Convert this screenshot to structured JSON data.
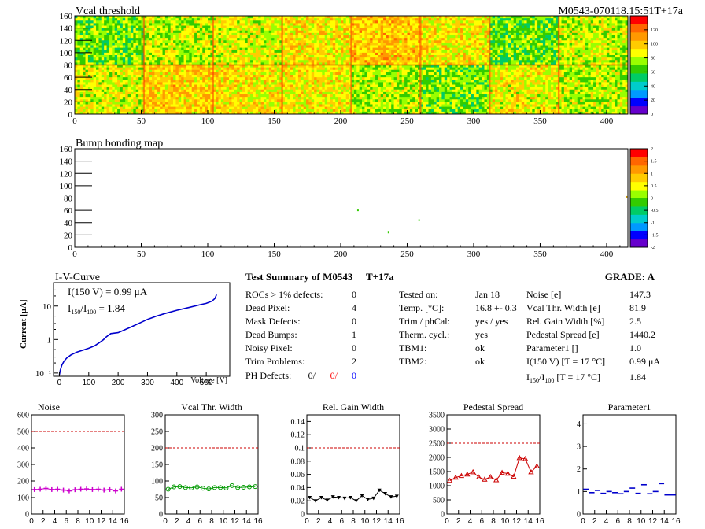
{
  "header": {
    "title": "Vcal threshold",
    "module_tag": "M0543-070118.15:51T+17a"
  },
  "bump": {
    "title": "Bump bonding map"
  },
  "iv": {
    "title": "I-V-Curve",
    "ylabel": "Current [μA]",
    "xlabel": "Voltage [V]"
  },
  "summary": {
    "title": "Test Summary of M0543",
    "temp_tag": "T+17a",
    "grade": "GRADE:  A",
    "rows": [
      {
        "label": "ROCs > 1% defects:",
        "value": "0"
      },
      {
        "label": "Dead Pixel:",
        "value": "4"
      },
      {
        "label": "Mask Defects:",
        "value": "0"
      },
      {
        "label": "Dead Bumps:",
        "value": "1"
      },
      {
        "label": "Noisy Pixel:",
        "value": "0"
      },
      {
        "label": "Trim Problems:",
        "value": "2"
      }
    ],
    "ph_label": "PH Defects:",
    "ph_values": [
      "0/",
      "0/",
      "0"
    ],
    "ph_colors": [
      "#000000",
      "#ff0000",
      "#0000ff"
    ],
    "tests": [
      {
        "label": "Tested on:",
        "value": "Jan 18"
      },
      {
        "label": "Temp. [°C]:",
        "value": "16.8 +- 0.3"
      },
      {
        "label": "Trim / phCal:",
        "value": "yes / yes"
      },
      {
        "label": "Therm. cycl.:",
        "value": "yes"
      },
      {
        "label": "TBM1:",
        "value": "ok"
      },
      {
        "label": "TBM2:",
        "value": "ok"
      }
    ],
    "params": [
      {
        "label": "Noise [e]",
        "value": "147.3"
      },
      {
        "label": "Vcal Thr. Width [e]",
        "value": "81.9"
      },
      {
        "label": "Rel. Gain Width [%]",
        "value": "2.5"
      },
      {
        "label": "Pedestal Spread [e]",
        "value": "1440.2"
      },
      {
        "label": "Parameter1 []",
        "value": "1.0"
      },
      {
        "label": "I(150 V) [T = 17 °C]",
        "value": "0.99 μA"
      },
      {
        "label": "I150/I100  [T = 17 °C]",
        "value": "1.84"
      }
    ]
  },
  "chart_data": [
    {
      "type": "heatmap",
      "title": "Vcal threshold",
      "xlim": [
        0,
        416
      ],
      "ylim": [
        0,
        160
      ],
      "x_ticks": [
        0,
        50,
        100,
        150,
        200,
        250,
        300,
        350,
        400
      ],
      "y_ticks": [
        0,
        20,
        40,
        60,
        80,
        100,
        120,
        140,
        160
      ],
      "z_range": [
        0,
        140
      ],
      "z_ticks": [
        0,
        20,
        40,
        60,
        80,
        100,
        120
      ],
      "roc_means_top": [
        70,
        80,
        85,
        92,
        100,
        92,
        68,
        82
      ],
      "roc_means_bottom": [
        85,
        98,
        92,
        90,
        78,
        72,
        88,
        80
      ],
      "palette": [
        "#6600cc",
        "#0000ff",
        "#0099ff",
        "#00cccc",
        "#00cc66",
        "#33cc00",
        "#99ff00",
        "#ffff00",
        "#ffcc00",
        "#ff9900",
        "#ff6600",
        "#ff0000"
      ]
    },
    {
      "type": "heatmap",
      "title": "Bump bonding map",
      "xlim": [
        0,
        416
      ],
      "ylim": [
        0,
        160
      ],
      "x_ticks": [
        0,
        50,
        100,
        150,
        200,
        250,
        300,
        350,
        400
      ],
      "y_ticks": [
        0,
        20,
        40,
        60,
        80,
        100,
        120,
        140,
        160
      ],
      "z_range": [
        -2,
        2
      ],
      "z_ticks": [
        "-2",
        "-1.5",
        "-1",
        "-0.5",
        "0",
        "0.5",
        "1",
        "1.5",
        "2"
      ],
      "points": [
        {
          "x": 213,
          "y": 60,
          "c": "#33cc00"
        },
        {
          "x": 236,
          "y": 24,
          "c": "#33cc00"
        },
        {
          "x": 259,
          "y": 44,
          "c": "#33cc00"
        },
        {
          "x": 415,
          "y": 82,
          "c": "#cc9900"
        }
      ]
    },
    {
      "type": "line",
      "title": "I-V-Curve",
      "xlabel": "Voltage [V]",
      "ylabel": "Current [μA]",
      "xlim": [
        -20,
        580
      ],
      "y_log": true,
      "ylim": [
        0.08,
        50
      ],
      "x_ticks": [
        0,
        100,
        200,
        300,
        400,
        500
      ],
      "y_ticks": [
        {
          "v": 0.1,
          "l": "10⁻¹"
        },
        {
          "v": 1,
          "l": "1"
        },
        {
          "v": 10,
          "l": "10"
        }
      ],
      "annotation1": "I(150 V) = 0.99 μA",
      "annotation2": "I150/I100 =  1.84",
      "x": [
        0,
        3,
        8,
        15,
        25,
        40,
        60,
        80,
        100,
        120,
        140,
        150,
        160,
        175,
        200,
        220,
        250,
        280,
        300,
        330,
        360,
        400,
        440,
        480,
        500,
        520,
        530,
        535
      ],
      "y": [
        0.09,
        0.12,
        0.17,
        0.22,
        0.28,
        0.35,
        0.42,
        0.48,
        0.55,
        0.65,
        0.85,
        0.99,
        1.2,
        1.5,
        1.6,
        1.9,
        2.5,
        3.3,
        4,
        5,
        6,
        7.5,
        9,
        11,
        12,
        14,
        17,
        22
      ],
      "color": "#0000cc"
    },
    {
      "type": "line",
      "title": "Noise",
      "xlim": [
        0,
        16
      ],
      "ylim": [
        0,
        600
      ],
      "y_ticks": [
        0,
        100,
        200,
        300,
        400,
        500,
        600
      ],
      "limit": 500,
      "x": [
        0,
        1,
        2,
        3,
        4,
        5,
        6,
        7,
        8,
        9,
        10,
        11,
        12,
        13,
        14,
        15
      ],
      "values": [
        148,
        150,
        155,
        148,
        150,
        145,
        140,
        147,
        150,
        152,
        148,
        150,
        145,
        148,
        140,
        150
      ],
      "color": "#cc00cc",
      "marker": "cross"
    },
    {
      "type": "line",
      "title": "Vcal Thr. Width",
      "xlim": [
        0,
        16
      ],
      "ylim": [
        0,
        300
      ],
      "y_ticks": [
        0,
        50,
        100,
        150,
        200,
        250,
        300
      ],
      "limit": 200,
      "x": [
        0,
        1,
        2,
        3,
        4,
        5,
        6,
        7,
        8,
        9,
        10,
        11,
        12,
        13,
        14,
        15
      ],
      "values": [
        75,
        82,
        83,
        80,
        79,
        82,
        78,
        76,
        80,
        80,
        79,
        86,
        80,
        81,
        82,
        83
      ],
      "color": "#009900",
      "marker": "circle"
    },
    {
      "type": "line",
      "title": "Rel. Gain Width",
      "xlim": [
        0,
        16
      ],
      "ylim": [
        0,
        0.15
      ],
      "y_ticks": [
        0,
        0.02,
        0.04,
        0.06,
        0.08,
        0.1,
        0.12,
        0.14
      ],
      "limit": 0.1,
      "x": [
        0,
        1,
        2,
        3,
        4,
        5,
        6,
        7,
        8,
        9,
        10,
        11,
        12,
        13,
        14,
        15
      ],
      "values": [
        0.025,
        0.02,
        0.025,
        0.021,
        0.026,
        0.025,
        0.024,
        0.025,
        0.02,
        0.028,
        0.022,
        0.024,
        0.036,
        0.031,
        0.026,
        0.027
      ],
      "color": "#000000",
      "marker": "triangle-down"
    },
    {
      "type": "line",
      "title": "Pedestal Spread",
      "xlim": [
        0,
        16
      ],
      "ylim": [
        0,
        3500
      ],
      "y_ticks": [
        0,
        500,
        1000,
        1500,
        2000,
        2500,
        3000,
        3500
      ],
      "limit": 2500,
      "x": [
        0,
        1,
        2,
        3,
        4,
        5,
        6,
        7,
        8,
        9,
        10,
        11,
        12,
        13,
        14,
        15
      ],
      "values": [
        1180,
        1290,
        1350,
        1400,
        1480,
        1300,
        1220,
        1310,
        1200,
        1460,
        1430,
        1320,
        1980,
        1950,
        1480,
        1690
      ],
      "color": "#cc0000",
      "marker": "triangle-up"
    },
    {
      "type": "scatter",
      "title": "Parameter1",
      "xlim": [
        0,
        16
      ],
      "ylim": [
        0,
        4.4
      ],
      "y_ticks": [
        0,
        1,
        2,
        3,
        4
      ],
      "x": [
        0,
        1,
        2,
        3,
        4,
        5,
        6,
        7,
        8,
        9,
        10,
        11,
        12,
        13,
        14,
        15
      ],
      "values": [
        1.1,
        0.95,
        1.05,
        0.92,
        1.0,
        0.95,
        0.9,
        1.0,
        1.15,
        0.92,
        1.3,
        0.9,
        1.0,
        1.35,
        0.85,
        0.85
      ],
      "color": "#0000cc",
      "marker": "hbar"
    }
  ],
  "bottom_x_ticks": [
    0,
    2,
    4,
    6,
    8,
    10,
    12,
    14,
    16
  ]
}
